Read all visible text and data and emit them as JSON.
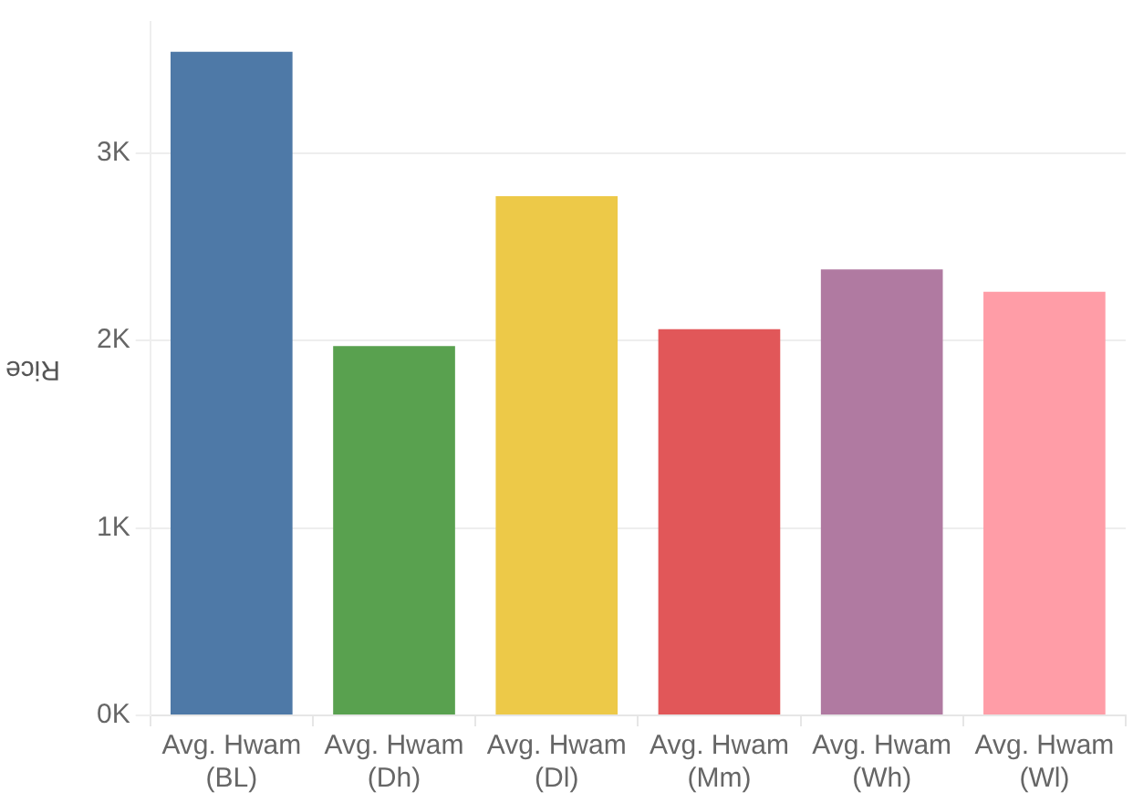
{
  "chart_data": {
    "type": "bar",
    "ylabel": "Rice",
    "categories": [
      "Avg. Hwam\n(BL)",
      "Avg. Hwam\n(Dh)",
      "Avg. Hwam\n(Dl)",
      "Avg. Hwam\n(Mm)",
      "Avg. Hwam\n(Wh)",
      "Avg. Hwam\n(Wl)"
    ],
    "values": [
      3540,
      1970,
      2770,
      2060,
      2380,
      2260
    ],
    "colors": [
      "#4e79a7",
      "#59a14f",
      "#edc948",
      "#e15759",
      "#b07aa1",
      "#ff9da7"
    ],
    "ylim": [
      0,
      3700
    ],
    "yticks": [
      {
        "value": 0,
        "label": "0K"
      },
      {
        "value": 1000,
        "label": "1K"
      },
      {
        "value": 2000,
        "label": "2K"
      },
      {
        "value": 3000,
        "label": "3K"
      }
    ],
    "grid": "y",
    "legend": false
  }
}
